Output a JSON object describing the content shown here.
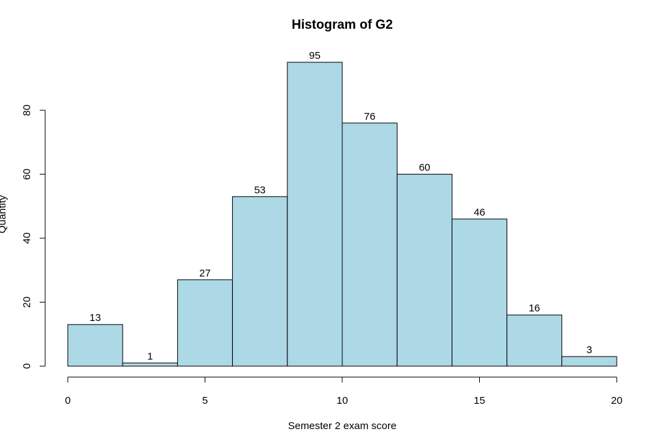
{
  "chart_data": {
    "type": "bar",
    "title": "Histogram of G2",
    "xlabel": "Semester 2 exam score",
    "ylabel": "Quantity",
    "bins": [
      {
        "start": 0,
        "end": 2,
        "value": 13
      },
      {
        "start": 2,
        "end": 4,
        "value": 1
      },
      {
        "start": 4,
        "end": 6,
        "value": 27
      },
      {
        "start": 6,
        "end": 8,
        "value": 53
      },
      {
        "start": 8,
        "end": 10,
        "value": 95
      },
      {
        "start": 10,
        "end": 12,
        "value": 76
      },
      {
        "start": 12,
        "end": 14,
        "value": 60
      },
      {
        "start": 14,
        "end": 16,
        "value": 46
      },
      {
        "start": 16,
        "end": 18,
        "value": 16
      },
      {
        "start": 18,
        "end": 20,
        "value": 3
      }
    ],
    "xlim": [
      0,
      20
    ],
    "ylim": [
      0,
      95
    ],
    "xticks": [
      0,
      5,
      10,
      15,
      20
    ],
    "yticks": [
      0,
      20,
      40,
      60,
      80
    ],
    "bar_color": "#add8e6",
    "grid": false,
    "legend": "none"
  }
}
